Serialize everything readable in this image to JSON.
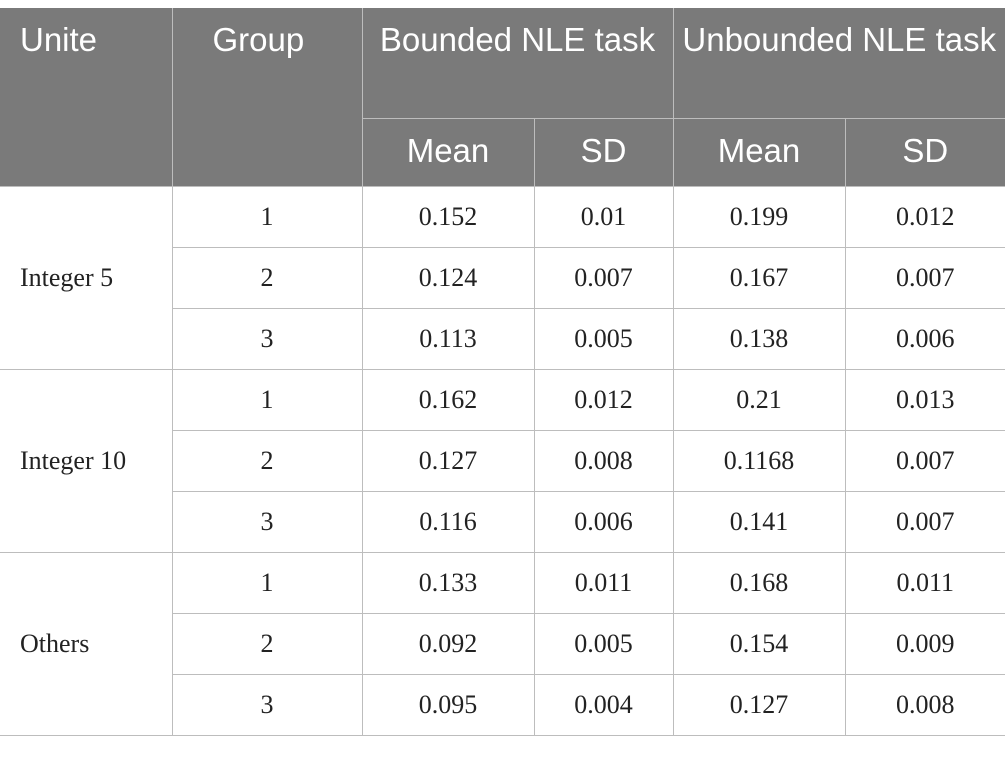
{
  "header": {
    "unite": "Unite",
    "group": "Group",
    "bounded": "Bounded NLE task",
    "unbounded": "Unbounded NLE task",
    "mean": "Mean",
    "sd": "SD"
  },
  "sections": [
    {
      "unit": "Integer 5",
      "rows": [
        {
          "group": "1",
          "b_mean": "0.152",
          "b_sd": "0.01",
          "u_mean": "0.199",
          "u_sd": "0.012"
        },
        {
          "group": "2",
          "b_mean": "0.124",
          "b_sd": "0.007",
          "u_mean": "0.167",
          "u_sd": "0.007"
        },
        {
          "group": "3",
          "b_mean": "0.113",
          "b_sd": "0.005",
          "u_mean": "0.138",
          "u_sd": "0.006"
        }
      ]
    },
    {
      "unit": "Integer 10",
      "rows": [
        {
          "group": "1",
          "b_mean": "0.162",
          "b_sd": "0.012",
          "u_mean": "0.21",
          "u_sd": "0.013"
        },
        {
          "group": "2",
          "b_mean": "0.127",
          "b_sd": "0.008",
          "u_mean": "0.1168",
          "u_sd": "0.007"
        },
        {
          "group": "3",
          "b_mean": "0.116",
          "b_sd": "0.006",
          "u_mean": "0.141",
          "u_sd": "0.007"
        }
      ]
    },
    {
      "unit": "Others",
      "rows": [
        {
          "group": "1",
          "b_mean": "0.133",
          "b_sd": "0.011",
          "u_mean": "0.168",
          "u_sd": "0.011"
        },
        {
          "group": "2",
          "b_mean": "0.092",
          "b_sd": "0.005",
          "u_mean": "0.154",
          "u_sd": "0.009"
        },
        {
          "group": "3",
          "b_mean": "0.095",
          "b_sd": "0.004",
          "u_mean": "0.127",
          "u_sd": "0.008"
        }
      ]
    }
  ]
}
